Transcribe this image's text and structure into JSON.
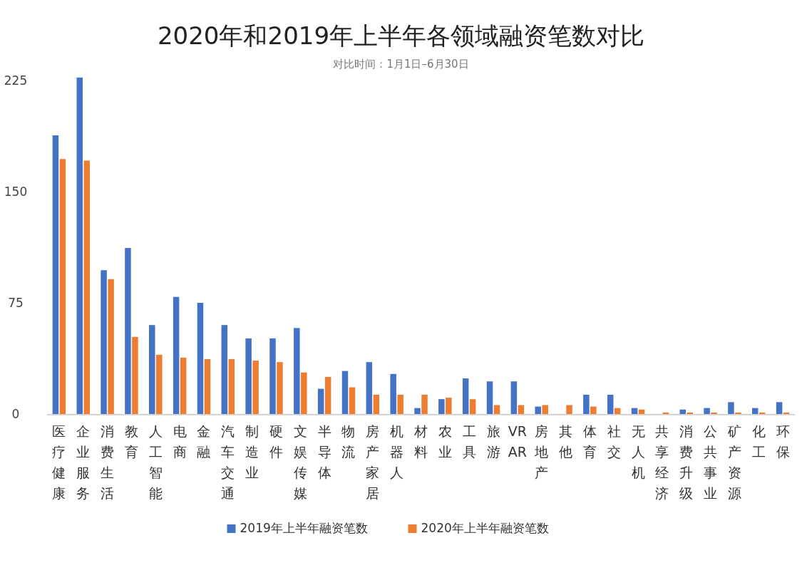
{
  "chart_data": {
    "type": "bar",
    "title": "2020年和2019年上半年各领域融资笔数对比",
    "subtitle": "对比时间：1月1日–6月30日",
    "categories": [
      "医疗健康",
      "企业服务",
      "消费生活",
      "教育",
      "人工智能",
      "电商",
      "金融",
      "汽车交通",
      "制造业",
      "硬件",
      "文娱传媒",
      "半导体",
      "物流",
      "房产家居",
      "机器人",
      "材料",
      "农业",
      "工具",
      "旅游",
      "VR AR",
      "房地产",
      "其他",
      "体育",
      "社交",
      "无人机",
      "共享经济",
      "消费升级",
      "公共事业",
      "矿产资源",
      "化工",
      "环保"
    ],
    "series": [
      {
        "name": "2019年上半年融资笔数",
        "color": "#4472c4",
        "values": [
          188,
          227,
          97,
          112,
          60,
          79,
          75,
          60,
          51,
          51,
          58,
          17,
          29,
          35,
          27,
          4,
          10,
          24,
          22,
          22,
          5,
          0,
          13,
          13,
          4,
          0,
          3,
          4,
          8,
          4,
          8
        ]
      },
      {
        "name": "2020年上半年融资笔数",
        "color": "#ed7d31",
        "values": [
          172,
          171,
          91,
          52,
          40,
          38,
          37,
          37,
          36,
          35,
          28,
          25,
          18,
          13,
          13,
          13,
          11,
          10,
          6,
          6,
          6,
          6,
          5,
          4,
          3,
          1,
          1,
          1,
          1,
          1,
          1
        ]
      }
    ],
    "ylim": [
      0,
      230
    ],
    "yticks": [
      0,
      75,
      150,
      225
    ],
    "grid": false,
    "legend": "bottom"
  }
}
